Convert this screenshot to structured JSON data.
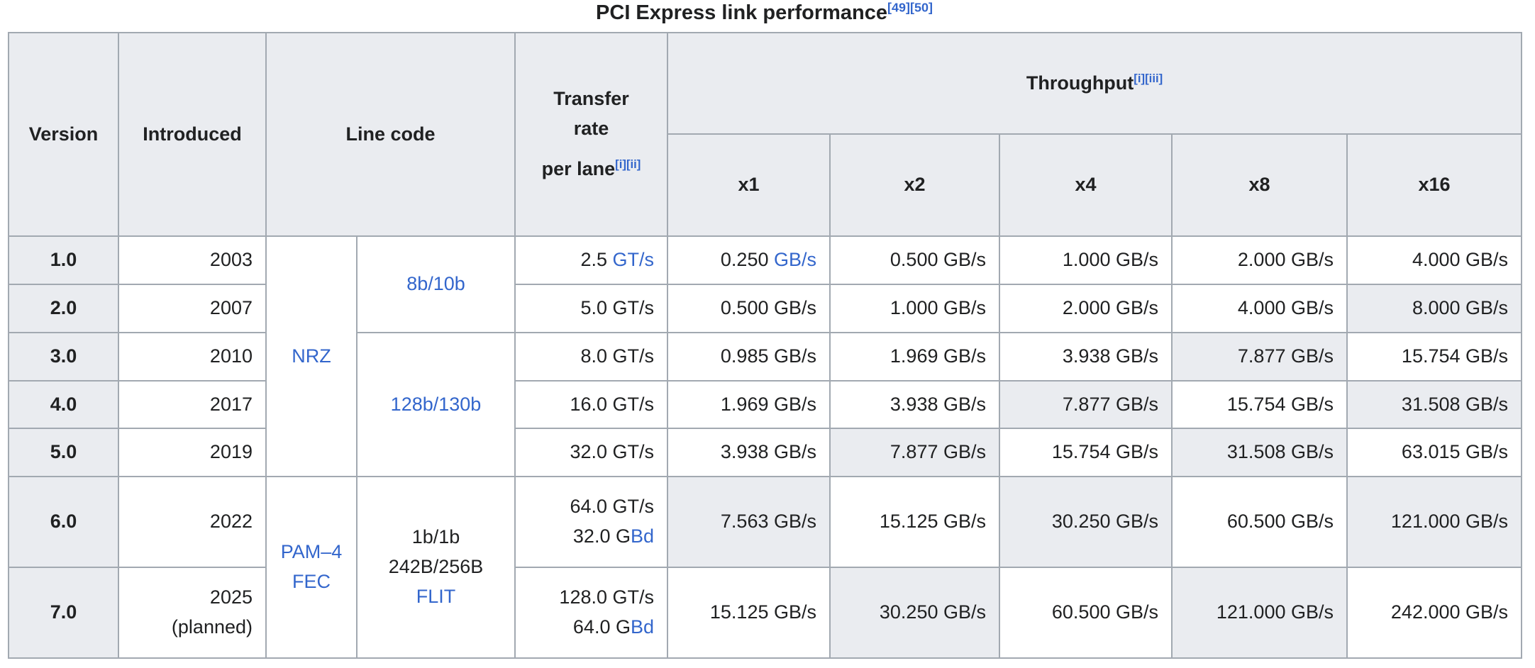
{
  "page": {
    "title": {
      "text": "PCI Express link performance",
      "refs": [
        "[49]",
        "[50]"
      ]
    }
  },
  "colors": {
    "link_blue": "#3366cc",
    "header_bg": "#eaecf0",
    "shaded_cell_bg": "#eaecf0",
    "border": "#a2a9b1",
    "text": "#202122"
  },
  "table": {
    "column_headers": {
      "version": "Version",
      "introduced": "Introduced",
      "line_code": "Line code",
      "transfer_rate": {
        "line1": "Transfer rate",
        "line2": "per lane",
        "refs": [
          "[i]",
          "[ii]"
        ]
      },
      "throughput": {
        "text": "Throughput",
        "refs": [
          "[i]",
          "[iii]"
        ]
      },
      "lanes": [
        "x1",
        "x2",
        "x4",
        "x8",
        "x16"
      ]
    },
    "line_code_cells": [
      {
        "col": 0,
        "row": 0,
        "rowspan": 5,
        "parts": [
          {
            "t": "NRZ",
            "link": true
          }
        ]
      },
      {
        "col": 1,
        "row": 0,
        "rowspan": 2,
        "parts": [
          {
            "t": "8b/10b",
            "link": true
          }
        ]
      },
      {
        "col": 1,
        "row": 2,
        "rowspan": 3,
        "parts": [
          {
            "t": "128b/130b",
            "link": true
          }
        ]
      },
      {
        "col": 0,
        "row": 5,
        "rowspan": 2,
        "parts": [
          {
            "t": "PAM–4 FEC",
            "link": true
          }
        ]
      },
      {
        "col": 1,
        "row": 5,
        "rowspan": 2,
        "parts": [
          {
            "t": "1b/1b 242B/256B "
          },
          {
            "t": "FLIT",
            "link": true
          }
        ]
      }
    ],
    "rows": [
      {
        "version": "1.0",
        "introduced": "2003",
        "tall": false,
        "transfer": [
          [
            {
              "t": "2.5 "
            },
            {
              "t": "GT/s",
              "link": true
            }
          ]
        ],
        "throughput": [
          {
            "parts": [
              {
                "t": "0.250 "
              },
              {
                "t": "GB/s",
                "link": true
              }
            ],
            "shaded": false
          },
          {
            "parts": [
              {
                "t": "0.500 GB/s"
              }
            ],
            "shaded": false
          },
          {
            "parts": [
              {
                "t": "1.000 GB/s"
              }
            ],
            "shaded": false
          },
          {
            "parts": [
              {
                "t": "2.000 GB/s"
              }
            ],
            "shaded": false
          },
          {
            "parts": [
              {
                "t": "4.000 GB/s"
              }
            ],
            "shaded": false
          }
        ]
      },
      {
        "version": "2.0",
        "introduced": "2007",
        "tall": false,
        "transfer": [
          [
            {
              "t": "5.0 GT/s"
            }
          ]
        ],
        "throughput": [
          {
            "parts": [
              {
                "t": "0.500 GB/s"
              }
            ],
            "shaded": false
          },
          {
            "parts": [
              {
                "t": "1.000 GB/s"
              }
            ],
            "shaded": false
          },
          {
            "parts": [
              {
                "t": "2.000 GB/s"
              }
            ],
            "shaded": false
          },
          {
            "parts": [
              {
                "t": "4.000 GB/s"
              }
            ],
            "shaded": false
          },
          {
            "parts": [
              {
                "t": "8.000 GB/s"
              }
            ],
            "shaded": true
          }
        ]
      },
      {
        "version": "3.0",
        "introduced": "2010",
        "tall": false,
        "transfer": [
          [
            {
              "t": "8.0 GT/s"
            }
          ]
        ],
        "throughput": [
          {
            "parts": [
              {
                "t": "0.985 GB/s"
              }
            ],
            "shaded": false
          },
          {
            "parts": [
              {
                "t": "1.969 GB/s"
              }
            ],
            "shaded": false
          },
          {
            "parts": [
              {
                "t": "3.938 GB/s"
              }
            ],
            "shaded": false
          },
          {
            "parts": [
              {
                "t": "7.877 GB/s"
              }
            ],
            "shaded": true
          },
          {
            "parts": [
              {
                "t": "15.754 GB/s"
              }
            ],
            "shaded": false
          }
        ]
      },
      {
        "version": "4.0",
        "introduced": "2017",
        "tall": false,
        "transfer": [
          [
            {
              "t": "16.0 GT/s"
            }
          ]
        ],
        "throughput": [
          {
            "parts": [
              {
                "t": "1.969 GB/s"
              }
            ],
            "shaded": false
          },
          {
            "parts": [
              {
                "t": "3.938 GB/s"
              }
            ],
            "shaded": false
          },
          {
            "parts": [
              {
                "t": "7.877 GB/s"
              }
            ],
            "shaded": true
          },
          {
            "parts": [
              {
                "t": "15.754 GB/s"
              }
            ],
            "shaded": false
          },
          {
            "parts": [
              {
                "t": "31.508 GB/s"
              }
            ],
            "shaded": true
          }
        ]
      },
      {
        "version": "5.0",
        "introduced": "2019",
        "tall": false,
        "transfer": [
          [
            {
              "t": "32.0 GT/s"
            }
          ]
        ],
        "throughput": [
          {
            "parts": [
              {
                "t": "3.938 GB/s"
              }
            ],
            "shaded": false
          },
          {
            "parts": [
              {
                "t": "7.877 GB/s"
              }
            ],
            "shaded": true
          },
          {
            "parts": [
              {
                "t": "15.754 GB/s"
              }
            ],
            "shaded": false
          },
          {
            "parts": [
              {
                "t": "31.508 GB/s"
              }
            ],
            "shaded": true
          },
          {
            "parts": [
              {
                "t": "63.015 GB/s"
              }
            ],
            "shaded": false
          }
        ]
      },
      {
        "version": "6.0",
        "introduced": "2022",
        "tall": true,
        "transfer": [
          [
            {
              "t": "64.0 GT/s"
            }
          ],
          [
            {
              "t": "32.0 G"
            },
            {
              "t": "Bd",
              "link": true
            }
          ]
        ],
        "throughput": [
          {
            "parts": [
              {
                "t": "7.563 GB/s"
              }
            ],
            "shaded": true
          },
          {
            "parts": [
              {
                "t": "15.125 GB/s"
              }
            ],
            "shaded": false
          },
          {
            "parts": [
              {
                "t": "30.250 GB/s"
              }
            ],
            "shaded": true
          },
          {
            "parts": [
              {
                "t": "60.500 GB/s"
              }
            ],
            "shaded": false
          },
          {
            "parts": [
              {
                "t": "121.000 GB/s"
              }
            ],
            "shaded": true
          }
        ]
      },
      {
        "version": "7.0",
        "introduced": "2025 (planned)",
        "tall": true,
        "transfer": [
          [
            {
              "t": "128.0 GT/s"
            }
          ],
          [
            {
              "t": "64.0 G"
            },
            {
              "t": "Bd",
              "link": true
            }
          ]
        ],
        "throughput": [
          {
            "parts": [
              {
                "t": "15.125 GB/s"
              }
            ],
            "shaded": false
          },
          {
            "parts": [
              {
                "t": "30.250 GB/s"
              }
            ],
            "shaded": true
          },
          {
            "parts": [
              {
                "t": "60.500 GB/s"
              }
            ],
            "shaded": false
          },
          {
            "parts": [
              {
                "t": "121.000 GB/s"
              }
            ],
            "shaded": true
          },
          {
            "parts": [
              {
                "t": "242.000 GB/s"
              }
            ],
            "shaded": false
          }
        ]
      }
    ]
  }
}
